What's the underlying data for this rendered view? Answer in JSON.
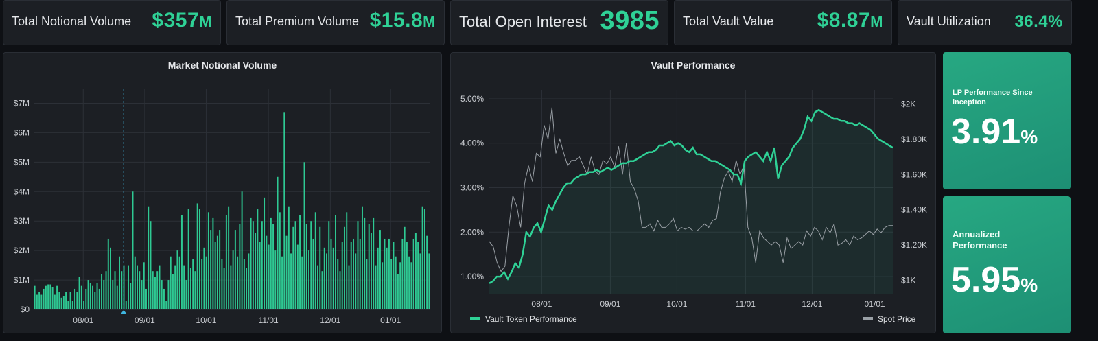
{
  "stats": {
    "notional": {
      "label": "Total Notional Volume",
      "value": "$357",
      "unit": "M"
    },
    "premium": {
      "label": "Total Premium Volume",
      "value": "$15.8",
      "unit": "M"
    },
    "open_interest": {
      "label": "Total Open Interest",
      "value": "3985"
    },
    "vault_value": {
      "label": "Total Vault Value",
      "value": "$8.87",
      "unit": "M"
    },
    "utilization": {
      "label": "Vault Utilization",
      "value": "36.4%"
    }
  },
  "lp_card": {
    "label": "LP Performance Since Inception",
    "value": "3.91",
    "unit": "%"
  },
  "annual_card": {
    "label": "Annualized Performance",
    "value": "5.95",
    "unit": "%"
  },
  "colors": {
    "accent": "#2fd196",
    "spot": "#9aa0a6",
    "card_bg": "#1c1f24"
  },
  "chart_data": [
    {
      "type": "bar",
      "title": "Market Notional Volume",
      "x_tick_labels": [
        "08/01",
        "09/01",
        "10/01",
        "11/01",
        "12/01",
        "01/01"
      ],
      "y_tick_labels": [
        "$0",
        "$1M",
        "$2M",
        "$3M",
        "$4M",
        "$5M",
        "$6M",
        "$7M"
      ],
      "ylim": [
        0,
        7500000
      ],
      "grid": true,
      "values": [
        0.8,
        0.5,
        0.6,
        0.5,
        0.7,
        0.8,
        0.85,
        0.85,
        0.75,
        0.5,
        0.8,
        0.6,
        0.4,
        0.45,
        0.6,
        0.3,
        0.6,
        0.3,
        0.7,
        0.6,
        1.1,
        0.8,
        0.3,
        0.7,
        1.0,
        0.9,
        0.8,
        0.6,
        0.9,
        0.7,
        1.2,
        1.0,
        1.3,
        2.4,
        2.1,
        1.0,
        1.3,
        0.8,
        1.8,
        1.3,
        1.5,
        0.3,
        1.5,
        0.9,
        4.0,
        1.8,
        1.5,
        1.3,
        1.0,
        1.6,
        0.7,
        3.5,
        3.0,
        1.3,
        1.1,
        1.3,
        1.5,
        1.0,
        0.7,
        0.3,
        1.0,
        1.8,
        1.2,
        1.5,
        2.0,
        1.8,
        3.2,
        1.5,
        1.0,
        3.4,
        1.4,
        1.7,
        1.3,
        3.6,
        3.4,
        1.7,
        2.1,
        1.8,
        3.3,
        2.7,
        3.1,
        2.3,
        2.5,
        2.7,
        1.7,
        1.4,
        3.2,
        3.5,
        1.5,
        2.0,
        2.7,
        1.8,
        2.9,
        4.0,
        1.7,
        1.4,
        1.9,
        3.1,
        3.0,
        2.6,
        3.4,
        2.3,
        3.0,
        3.8,
        2.5,
        2.2,
        3.1,
        2.9,
        2.0,
        4.5,
        3.3,
        1.8,
        6.7,
        2.5,
        3.5,
        1.9,
        2.8,
        3.0,
        2.2,
        3.2,
        1.8,
        5.0,
        2.9,
        2.0,
        3.0,
        2.4,
        3.3,
        1.5,
        2.8,
        1.3,
        2.1,
        1.9,
        3.0,
        2.4,
        2.1,
        3.2,
        1.7,
        1.3,
        2.3,
        2.8,
        3.3,
        1.5,
        2.3,
        2.4,
        1.9,
        3.0,
        2.4,
        3.5,
        3.1,
        1.7,
        2.9,
        2.6,
        3.1,
        1.5,
        2.1,
        2.7,
        1.6,
        2.4,
        2.1,
        2.4,
        1.7,
        2.3,
        1.8,
        1.2,
        1.6,
        2.4,
        2.8,
        2.3,
        1.8,
        1.6,
        2.4,
        2.6,
        2.3,
        1.9,
        3.5,
        3.4,
        2.5,
        1.9
      ],
      "value_unit": "millions USD",
      "highlight_marker": "dashed vertical line near 08/17"
    },
    {
      "type": "line",
      "title": "Vault Performance",
      "x_tick_labels": [
        "08/01",
        "09/01",
        "10/01",
        "11/01",
        "12/01",
        "01/01"
      ],
      "y_left_tick_labels": [
        "1.00%",
        "2.00%",
        "3.00%",
        "4.00%",
        "5.00%"
      ],
      "y_right_tick_labels": [
        "$1K",
        "$1.20K",
        "$1.40K",
        "$1.60K",
        "$1.80K",
        "$2K"
      ],
      "ylim_left": [
        0.6,
        5.2
      ],
      "ylim_right": [
        920,
        2080
      ],
      "legend": [
        "Vault Token Performance",
        "Spot Price"
      ],
      "legend_position": "bottom",
      "series": [
        {
          "name": "Vault Token Performance",
          "axis": "left",
          "color": "#2fd196",
          "values": [
            0.85,
            0.9,
            1.0,
            1.0,
            1.1,
            0.95,
            1.1,
            1.3,
            1.2,
            1.5,
            2.0,
            1.9,
            2.1,
            2.2,
            2.0,
            2.3,
            2.6,
            2.5,
            2.7,
            2.85,
            3.0,
            3.1,
            3.1,
            3.2,
            3.25,
            3.3,
            3.3,
            3.35,
            3.35,
            3.4,
            3.35,
            3.4,
            3.45,
            3.4,
            3.45,
            3.5,
            3.55,
            3.55,
            3.6,
            3.6,
            3.65,
            3.7,
            3.75,
            3.8,
            3.8,
            3.85,
            3.95,
            3.95,
            4.0,
            4.05,
            3.95,
            4.0,
            3.95,
            3.85,
            3.8,
            3.9,
            3.75,
            3.75,
            3.7,
            3.65,
            3.6,
            3.6,
            3.55,
            3.5,
            3.45,
            3.4,
            3.3,
            3.3,
            3.1,
            3.6,
            3.7,
            3.75,
            3.8,
            3.7,
            3.6,
            3.8,
            3.6,
            3.9,
            3.2,
            3.5,
            3.6,
            3.7,
            3.9,
            4.0,
            4.1,
            4.3,
            4.6,
            4.5,
            4.7,
            4.75,
            4.7,
            4.65,
            4.6,
            4.55,
            4.55,
            4.5,
            4.5,
            4.45,
            4.45,
            4.4,
            4.45,
            4.4,
            4.35,
            4.3,
            4.2,
            4.1,
            4.05,
            4.0,
            3.95,
            3.9
          ]
        },
        {
          "name": "Spot Price",
          "axis": "right",
          "color": "#9aa0a6",
          "values": [
            1220,
            1190,
            1100,
            1050,
            1080,
            1300,
            1480,
            1420,
            1300,
            1550,
            1650,
            1560,
            1720,
            1700,
            1880,
            1800,
            1980,
            1720,
            1800,
            1720,
            1650,
            1680,
            1680,
            1700,
            1650,
            1600,
            1700,
            1620,
            1600,
            1680,
            1660,
            1700,
            1640,
            1760,
            1600,
            1780,
            1560,
            1520,
            1450,
            1300,
            1300,
            1320,
            1280,
            1340,
            1300,
            1300,
            1320,
            1350,
            1280,
            1300,
            1290,
            1300,
            1280,
            1280,
            1300,
            1320,
            1300,
            1340,
            1350,
            1500,
            1580,
            1620,
            1560,
            1680,
            1600,
            1650,
            1300,
            1240,
            1100,
            1280,
            1240,
            1220,
            1200,
            1220,
            1200,
            1100,
            1240,
            1180,
            1200,
            1220,
            1200,
            1280,
            1250,
            1300,
            1280,
            1230,
            1300,
            1270,
            1320,
            1200,
            1210,
            1230,
            1200,
            1250,
            1230,
            1240,
            1260,
            1280,
            1260,
            1290,
            1270,
            1300,
            1310,
            1310
          ]
        }
      ]
    }
  ]
}
